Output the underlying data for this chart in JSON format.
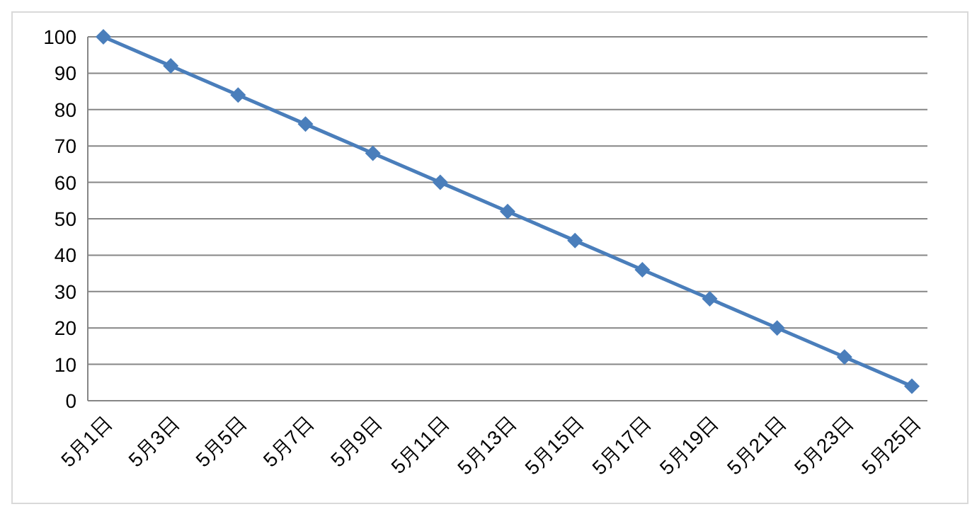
{
  "chart_data": {
    "type": "line",
    "categories": [
      "5月1日",
      "5月3日",
      "5月5日",
      "5月7日",
      "5月9日",
      "5月11日",
      "5月13日",
      "5月15日",
      "5月17日",
      "5月19日",
      "5月21日",
      "5月23日",
      "5月25日"
    ],
    "values": [
      100,
      92,
      84,
      76,
      68,
      60,
      52,
      44,
      36,
      28,
      20,
      12,
      4
    ],
    "color": "#4a7ebb",
    "ylim": [
      0,
      100
    ],
    "yticks": [
      0,
      10,
      20,
      30,
      40,
      50,
      60,
      70,
      80,
      90,
      100
    ],
    "grid": "y",
    "marker": "diamond",
    "line_style": "solid"
  }
}
